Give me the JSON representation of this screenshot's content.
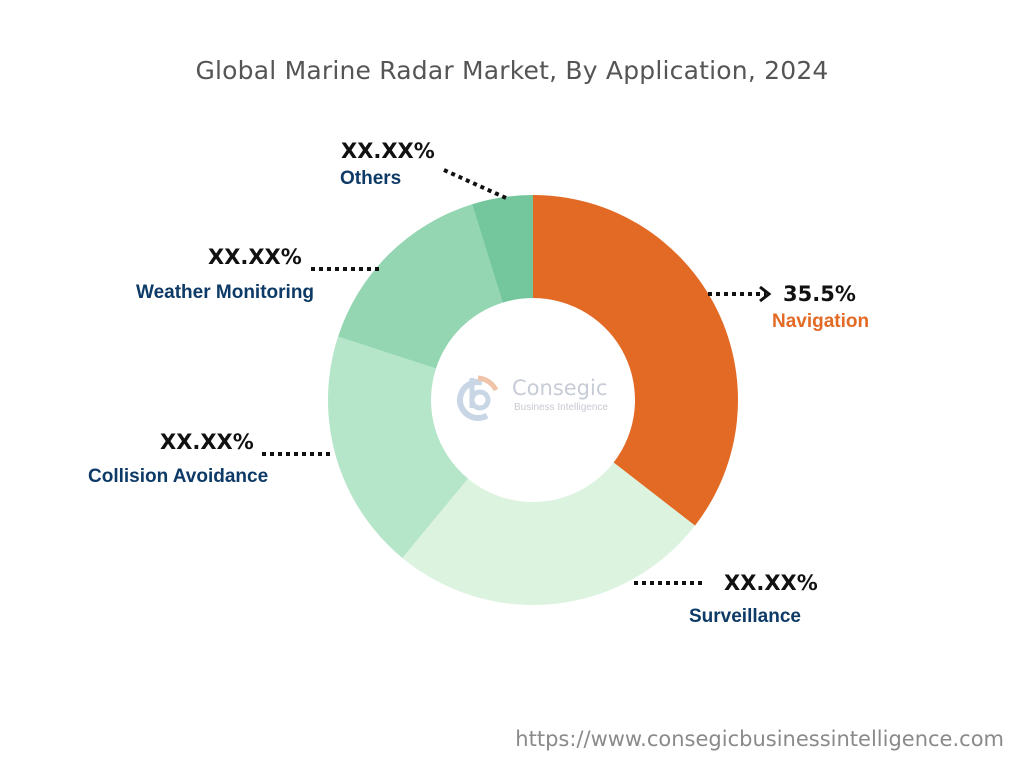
{
  "chart_data": {
    "type": "pie",
    "style": "donut",
    "title": "Global Marine Radar Market, By Application, 2024",
    "categories": [
      "Navigation",
      "Surveillance",
      "Collision Avoidance",
      "Weather Monitoring",
      "Others"
    ],
    "values": [
      35.5,
      25.5,
      19.0,
      15.2,
      4.8
    ],
    "data_labels": [
      "35.5%",
      "XX.XX%",
      "XX.XX%",
      "XX.XX%",
      "XX.XX%"
    ],
    "colors": [
      "#E36A25",
      "#DCF3E0",
      "#B5E6C9",
      "#94D6B2",
      "#74C69D"
    ],
    "label_colors": {
      "Navigation": "#E36A25",
      "others": "#0D3A66"
    },
    "legend": "none"
  },
  "logo": {
    "text_main": "Consegic",
    "text_sub": "Business Intelligence"
  },
  "footer": {
    "url": "https://www.consegicbusinessintelligence.com"
  }
}
